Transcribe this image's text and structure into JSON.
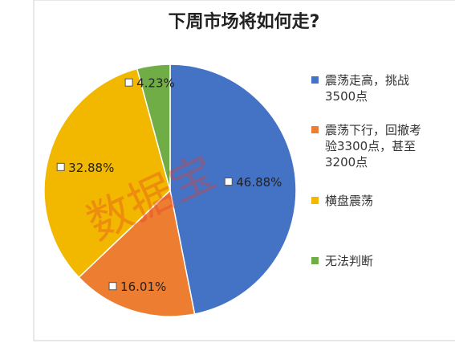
{
  "chart_data": {
    "type": "pie",
    "title": "下周市场将如何走?",
    "categories": [
      "震荡走高，挑战3500点",
      "震荡下行，回撤考验3300点，甚至3200点",
      "横盘震荡",
      "无法判断"
    ],
    "values": [
      46.88,
      16.01,
      32.88,
      4.23
    ],
    "value_labels": [
      "46.88%",
      "16.01%",
      "32.88%",
      "4.23%"
    ],
    "colors": [
      "#4472C4",
      "#ED7D31",
      "#F2B800",
      "#70AD47"
    ],
    "legend": "right",
    "watermark": "数据宝"
  }
}
